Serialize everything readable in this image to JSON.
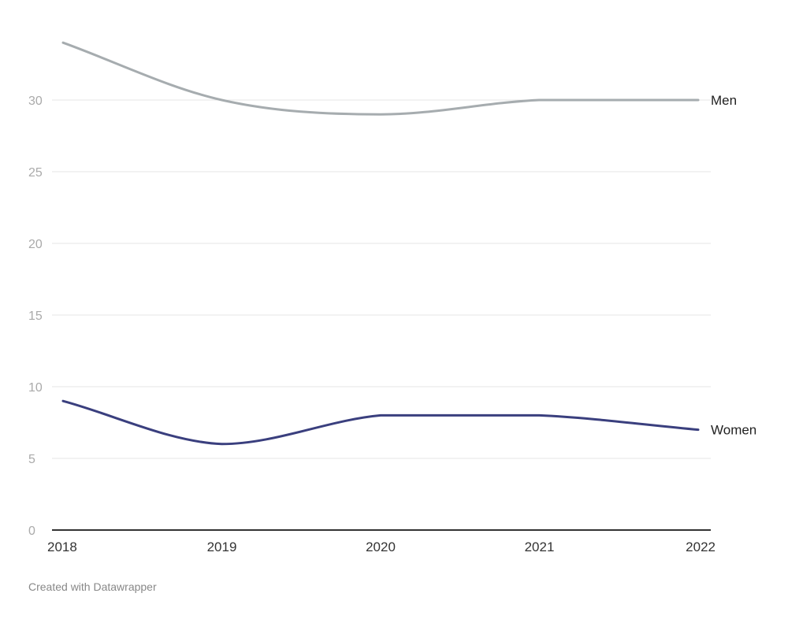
{
  "chart_data": {
    "type": "line",
    "x": [
      "2018",
      "2019",
      "2020",
      "2021",
      "2022"
    ],
    "series": [
      {
        "name": "Men",
        "values": [
          34,
          30,
          29,
          30,
          30
        ],
        "color": "#a6acaf"
      },
      {
        "name": "Women",
        "values": [
          9,
          6,
          8,
          8,
          7
        ],
        "color": "#3a3f7e"
      }
    ],
    "yticks": [
      0,
      5,
      10,
      15,
      20,
      25,
      30
    ],
    "ylim": [
      0,
      35
    ],
    "grid": true,
    "title": "",
    "xlabel": "",
    "ylabel": ""
  },
  "footer": {
    "credit": "Created with Datawrapper"
  }
}
